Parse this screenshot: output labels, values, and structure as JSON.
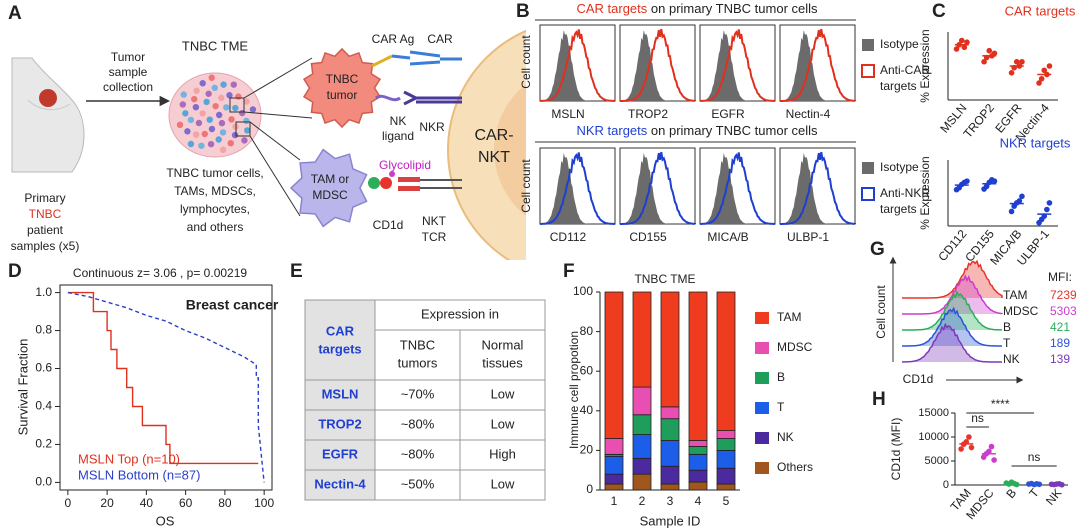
{
  "panel_labels": [
    "A",
    "B",
    "C",
    "D",
    "E",
    "F",
    "G",
    "H"
  ],
  "panel_a": {
    "tme_title": "TNBC TME",
    "collection": [
      "Tumor",
      "sample",
      "collection"
    ],
    "patient": [
      "Primary",
      "TNBC",
      "patient",
      "samples (x5)"
    ],
    "tme_contents": [
      "TNBC tumor cells,",
      "TAMs, MDSCs,",
      "lymphocytes,",
      "and others"
    ],
    "car_ag": "CAR Ag",
    "car": "CAR",
    "tumor": [
      "TNBC",
      "tumor"
    ],
    "nk_ligand": [
      "NK",
      "ligand"
    ],
    "nkr": "NKR",
    "car_nkt": [
      "CAR-",
      "NKT"
    ],
    "tam_mdsc": [
      "TAM or",
      "MDSC"
    ],
    "glycolipid": "Glycolipid",
    "cd1d": "CD1d",
    "nkt_tcr": [
      "NKT",
      "TCR"
    ]
  },
  "panel_b": {
    "y_label": "Cell count",
    "rows": [
      {
        "title_highlight": "CAR targets",
        "title_rest": " on primary TNBC tumor cells",
        "color": "#e0301e",
        "targets": [
          "MSLN",
          "TROP2",
          "EGFR",
          "Nectin-4"
        ],
        "isotype": "Isotype",
        "anti": [
          "Anti-CAR",
          "targets"
        ]
      },
      {
        "title_highlight": "NKR targets",
        "title_rest": " on primary TNBC tumor cells",
        "color": "#1f3fd1",
        "targets": [
          "CD112",
          "CD155",
          "MICA/B",
          "ULBP-1"
        ],
        "isotype": "Isotype",
        "anti": [
          "Anti-NKR",
          "targets"
        ]
      }
    ]
  },
  "chart_data": [
    {
      "type": "dot",
      "title": "CAR targets",
      "y_label": "% Expression",
      "color": "#e0301e",
      "categories": [
        "MSLN",
        "TROP2",
        "EGFR",
        "Nectin-4"
      ],
      "ylim": [
        0,
        80
      ],
      "values": [
        65,
        52,
        40,
        30
      ],
      "points": [
        [
          60,
          65,
          70,
          62,
          68
        ],
        [
          45,
          50,
          58,
          52,
          55
        ],
        [
          32,
          38,
          45,
          40,
          45
        ],
        [
          20,
          25,
          35,
          30,
          40
        ]
      ]
    },
    {
      "type": "dot",
      "title": "NKR targets",
      "y_label": "% Expression",
      "color": "#1f3fd1",
      "categories": [
        "CD112",
        "CD155",
        "MICA/B",
        "ULBP-1"
      ],
      "ylim": [
        0,
        100
      ],
      "values": [
        62,
        64,
        34,
        18
      ],
      "points": [
        [
          55,
          58,
          63,
          66,
          68
        ],
        [
          56,
          60,
          66,
          70,
          68
        ],
        [
          22,
          30,
          35,
          38,
          45
        ],
        [
          5,
          10,
          15,
          25,
          35
        ]
      ]
    },
    {
      "type": "line",
      "title": "Continuous z= 3.06 , p= 0.00219",
      "annotation": "Breast cancer",
      "x_label": "OS",
      "y_label": "Survival Fraction",
      "legend": "lower left",
      "xlim": [
        -4,
        104
      ],
      "ylim": [
        -0.04,
        1.04
      ],
      "xticks": [
        0,
        20,
        40,
        60,
        80,
        100
      ],
      "yticks": [
        {
          "value": 0,
          "label": "0.0"
        },
        {
          "value": 0.2,
          "label": "0.2"
        },
        {
          "value": 0.4,
          "label": "0.4"
        },
        {
          "value": 0.6,
          "label": "0.6"
        },
        {
          "value": 0.8,
          "label": "0.8"
        },
        {
          "value": 1,
          "label": "1.0"
        }
      ],
      "series": [
        {
          "name": "MSLN Top (n=10)",
          "color": "#e0301e",
          "dash": false,
          "x": [
            0,
            13,
            13,
            20,
            20,
            22,
            22,
            25,
            25,
            30,
            30,
            33,
            33,
            38,
            38,
            50,
            50,
            52,
            52,
            97
          ],
          "values": [
            1,
            1,
            0.9,
            0.9,
            0.8,
            0.8,
            0.7,
            0.7,
            0.6,
            0.6,
            0.5,
            0.5,
            0.4,
            0.4,
            0.3,
            0.3,
            0.2,
            0.2,
            0.1,
            0.1
          ]
        },
        {
          "name": "MSLN Bottom (n=87)",
          "color": "#2b3fc8",
          "dash": true,
          "x": [
            0,
            10,
            20,
            30,
            40,
            50,
            60,
            70,
            80,
            90,
            96,
            96,
            97,
            97,
            100
          ],
          "values": [
            1,
            0.98,
            0.95,
            0.92,
            0.88,
            0.85,
            0.8,
            0.76,
            0.71,
            0.66,
            0.62,
            0.55,
            0.55,
            0.3,
            0
          ]
        }
      ]
    },
    {
      "type": "stacked_bar",
      "title": "TNBC TME",
      "x_label": "Sample ID",
      "y_label": "Immune cell propotion",
      "categories": [
        "1",
        "2",
        "3",
        "4",
        "5"
      ],
      "ylim": [
        0,
        100
      ],
      "yticks": [
        0,
        20,
        40,
        60,
        80,
        100
      ],
      "series": [
        {
          "name": "Others",
          "color": "#a0561c",
          "values": [
            3,
            8,
            3,
            4,
            3
          ]
        },
        {
          "name": "NK",
          "color": "#4b2aa0",
          "values": [
            5,
            8,
            9,
            6,
            8
          ]
        },
        {
          "name": "T",
          "color": "#1c5ee8",
          "values": [
            9,
            12,
            13,
            8,
            9
          ]
        },
        {
          "name": "B",
          "color": "#1e9e5a",
          "values": [
            1,
            10,
            11,
            4,
            6
          ]
        },
        {
          "name": "MDSC",
          "color": "#e84fb0",
          "values": [
            8,
            14,
            6,
            3,
            4
          ]
        },
        {
          "name": "TAM",
          "color": "#f03c1e",
          "values": [
            74,
            48,
            58,
            75,
            70
          ]
        }
      ]
    },
    {
      "type": "dot",
      "y_label": "CD1d (MFI)",
      "categories": [
        "TAM",
        "MDSC",
        "B",
        "T",
        "NK"
      ],
      "colors": [
        "#e8342a",
        "#cc3ccc",
        "#2aae5a",
        "#2b54d8",
        "#7a3ab8"
      ],
      "ylim": [
        0,
        15000
      ],
      "yticks": [
        0,
        5000,
        10000,
        15000
      ],
      "values": [
        8560,
        6500,
        320,
        200,
        150
      ],
      "points": [
        [
          7500,
          8500,
          9000,
          10000,
          7800
        ],
        [
          5800,
          6500,
          7000,
          8000,
          5200
        ],
        [
          400,
          200,
          600,
          300,
          100
        ],
        [
          200,
          300,
          100,
          250,
          150
        ],
        [
          150,
          100,
          200,
          250,
          50
        ]
      ],
      "annotations": [
        "ns",
        "****",
        "ns"
      ]
    }
  ],
  "table_e": {
    "corner": [
      "CAR",
      "targets"
    ],
    "group_header": "Expression in",
    "columns": [
      [
        "TNBC",
        "tumors"
      ],
      [
        "Normal",
        "tissues"
      ]
    ],
    "rows": [
      [
        "MSLN",
        "~70%",
        "Low"
      ],
      [
        "TROP2",
        "~80%",
        "Low"
      ],
      [
        "EGFR",
        "~80%",
        "High"
      ],
      [
        "Nectin-4",
        "~50%",
        "Low"
      ]
    ]
  },
  "panel_g": {
    "y_label": "Cell count",
    "x_label": "CD1d",
    "mfi_title": "MFI:",
    "populations": [
      {
        "name": "TAM",
        "mfi": 7239,
        "color": "#e8342a"
      },
      {
        "name": "MDSC",
        "mfi": 5303,
        "color": "#cc3ccc"
      },
      {
        "name": "B",
        "mfi": 421,
        "color": "#2aae5a"
      },
      {
        "name": "T",
        "mfi": 189,
        "color": "#2b54d8"
      },
      {
        "name": "NK",
        "mfi": 139,
        "color": "#7a3ab8"
      }
    ]
  }
}
